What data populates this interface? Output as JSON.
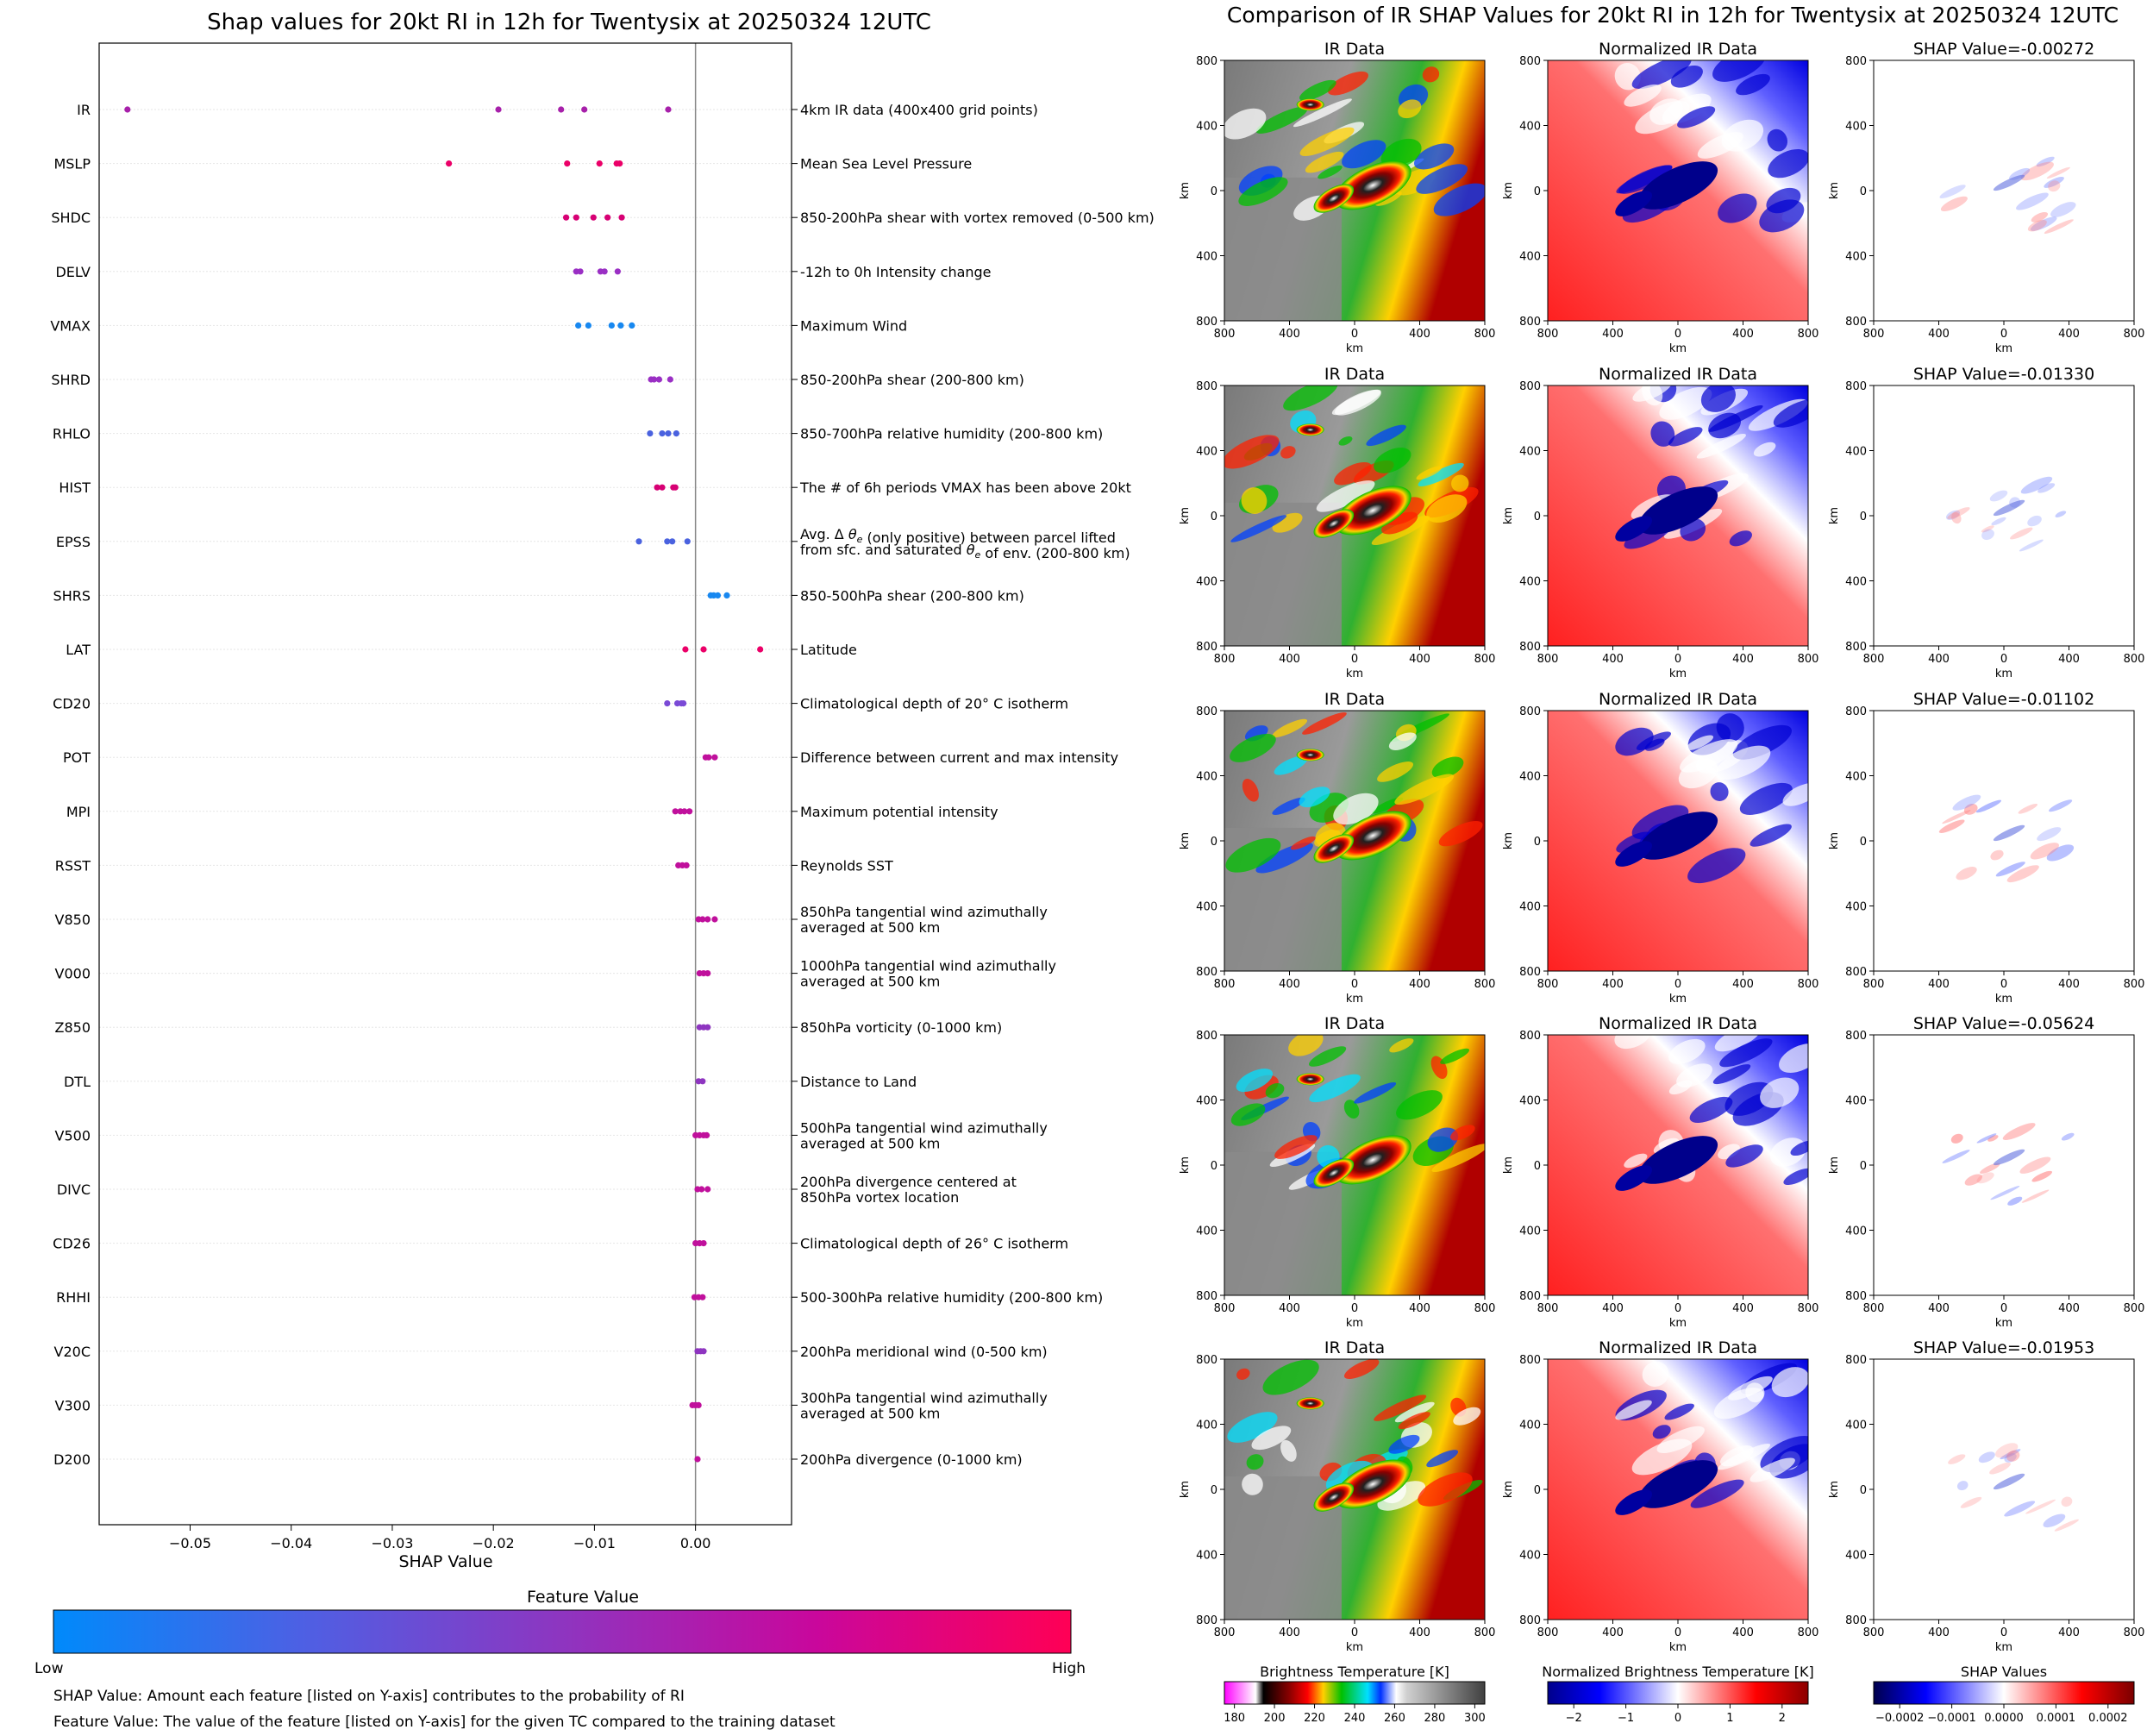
{
  "left": {
    "title": "Shap values for 20kt RI in 12h for Twentysix at 20250324 12UTC",
    "xlabel": "SHAP Value",
    "colorbar": {
      "title": "Feature Value",
      "low": "Low",
      "high": "High",
      "colors": [
        "#008afb",
        "#4f5fe3",
        "#8e35c0",
        "#c9079c",
        "#ff0055"
      ]
    },
    "notes": [
      "SHAP Value: Amount each feature [listed on Y-axis] contributes to the probability of RI",
      "Feature Value: The value of the feature [listed on Y-axis] for the given TC compared to the training dataset"
    ]
  },
  "right": {
    "title": "Comparison of IR SHAP Values for 20kt RI in 12h for Twentysix at 20250324 12UTC",
    "col_titles": [
      "IR Data",
      "Normalized IR Data"
    ],
    "shap_titles": [
      "SHAP Value=-0.00272",
      "SHAP Value=-0.01330",
      "SHAP Value=-0.01102",
      "SHAP Value=-0.05624",
      "SHAP Value=-0.01953"
    ],
    "axis_label": "km",
    "tick_labels": [
      "800",
      "400",
      "0",
      "400",
      "800"
    ],
    "colorbars": [
      {
        "title": "Brightness Temperature [K]",
        "ticks": [
          "180",
          "200",
          "220",
          "240",
          "260",
          "280",
          "300"
        ]
      },
      {
        "title": "Normalized Brightness Temperature [K]",
        "ticks": [
          "−2",
          "−1",
          "0",
          "1",
          "2"
        ]
      },
      {
        "title": "SHAP Values",
        "ticks": [
          "−0.0002",
          "−0.0001",
          "0.0000",
          "0.0001",
          "0.0002"
        ]
      }
    ]
  },
  "chart_data": [
    {
      "type": "scatter",
      "title": "Shap values for 20kt RI in 12h for Twentysix at 20250324 12UTC",
      "xlabel": "SHAP Value",
      "xlim": [
        -0.059,
        0.0095
      ],
      "x_ticks": [
        -0.05,
        -0.04,
        -0.03,
        -0.02,
        -0.01,
        0.0
      ],
      "x_tick_labels": [
        "−0.05",
        "−0.04",
        "−0.03",
        "−0.02",
        "−0.01",
        "0.00"
      ],
      "features": [
        {
          "name": "IR",
          "desc": "4km IR data (400x400 grid points)",
          "color": "#a720aa",
          "x": [
            -0.0562,
            -0.0195,
            -0.0133,
            -0.011,
            -0.0027
          ]
        },
        {
          "name": "MSLP",
          "desc": "Mean Sea Level Pressure",
          "color": "#eb0068",
          "x": [
            -0.0244,
            -0.0127,
            -0.0095,
            -0.0078,
            -0.0075
          ]
        },
        {
          "name": "SHDC",
          "desc": "850-200hPa shear with vortex removed (0-500 km)",
          "color": "#d70074",
          "x": [
            -0.0128,
            -0.0118,
            -0.0101,
            -0.0087,
            -0.0073
          ]
        },
        {
          "name": "DELV",
          "desc": "-12h to 0h Intensity change",
          "color": "#9a2fc4",
          "x": [
            -0.0118,
            -0.0114,
            -0.0094,
            -0.009,
            -0.0077
          ]
        },
        {
          "name": "VMAX",
          "desc": "Maximum Wind",
          "color": "#1888f0",
          "x": [
            -0.0116,
            -0.0106,
            -0.0083,
            -0.0074,
            -0.0063
          ]
        },
        {
          "name": "SHRD",
          "desc": "850-200hPa shear (200-800 km)",
          "color": "#9a2fc4",
          "x": [
            -0.0044,
            -0.0041,
            -0.0036,
            -0.0025
          ]
        },
        {
          "name": "RHLO",
          "desc": "850-700hPa relative humidity (200-800 km)",
          "color": "#4a62df",
          "x": [
            -0.0045,
            -0.0033,
            -0.0027,
            -0.0019
          ]
        },
        {
          "name": "HIST",
          "desc": "The # of 6h periods VMAX has been above 20kt",
          "color": "#d70074",
          "x": [
            -0.0038,
            -0.0033,
            -0.0022,
            -0.002
          ]
        },
        {
          "name": "EPSS",
          "desc": "Avg. Δ θe (only positive) between parcel lifted\nfrom sfc. and saturated θe of env. (200-800 km)",
          "color": "#4a62df",
          "x": [
            -0.0056,
            -0.0028,
            -0.0023,
            -0.0008
          ]
        },
        {
          "name": "SHRS",
          "desc": "850-500hPa shear (200-800 km)",
          "color": "#1888f0",
          "x": [
            0.0015,
            0.0018,
            0.0022,
            0.0031
          ]
        },
        {
          "name": "LAT",
          "desc": "Latitude",
          "color": "#eb0068",
          "x": [
            -0.001,
            0.0008,
            0.0064
          ]
        },
        {
          "name": "CD20",
          "desc": "Climatological depth of 20° C isotherm",
          "color": "#7a4ad6",
          "x": [
            -0.0028,
            -0.0018,
            -0.0014,
            -0.0012
          ]
        },
        {
          "name": "POT",
          "desc": "Difference between current and max intensity",
          "color": "#c0109c",
          "x": [
            0.001,
            0.0013,
            0.0019
          ]
        },
        {
          "name": "MPI",
          "desc": "Maximum potential intensity",
          "color": "#c0109c",
          "x": [
            -0.002,
            -0.0015,
            -0.0011,
            -0.0006
          ]
        },
        {
          "name": "RSST",
          "desc": "Reynolds SST",
          "color": "#c0109c",
          "x": [
            -0.0017,
            -0.0013,
            -0.0009
          ]
        },
        {
          "name": "V850",
          "desc": "850hPa tangential wind azimuthally\naveraged at 500 km",
          "color": "#c0109c",
          "x": [
            0.0003,
            0.0007,
            0.0012,
            0.0019
          ]
        },
        {
          "name": "V000",
          "desc": "1000hPa tangential wind azimuthally\naveraged at 500 km",
          "color": "#c0109c",
          "x": [
            0.0004,
            0.0008,
            0.0012
          ]
        },
        {
          "name": "Z850",
          "desc": "850hPa vorticity (0-1000 km)",
          "color": "#8e35c0",
          "x": [
            0.0004,
            0.0008,
            0.0012
          ]
        },
        {
          "name": "DTL",
          "desc": "Distance to Land",
          "color": "#8e35c0",
          "x": [
            0.0003,
            0.0007
          ]
        },
        {
          "name": "V500",
          "desc": "500hPa tangential wind azimuthally\naveraged at 500 km",
          "color": "#c0109c",
          "x": [
            0.0,
            0.0004,
            0.0008,
            0.0011
          ]
        },
        {
          "name": "DIVC",
          "desc": "200hPa divergence centered at\n850hPa vortex location",
          "color": "#c0109c",
          "x": [
            0.0002,
            0.0006,
            0.0012
          ]
        },
        {
          "name": "CD26",
          "desc": "Climatological depth of 26° C isotherm",
          "color": "#c0109c",
          "x": [
            0.0,
            0.0004,
            0.0008
          ]
        },
        {
          "name": "RHHI",
          "desc": "500-300hPa relative humidity (200-800 km)",
          "color": "#c0109c",
          "x": [
            -0.0001,
            0.0003,
            0.0007
          ]
        },
        {
          "name": "V20C",
          "desc": "200hPa meridional wind (0-500 km)",
          "color": "#8e35c0",
          "x": [
            0.0002,
            0.0005,
            0.0008
          ]
        },
        {
          "name": "V300",
          "desc": "300hPa tangential wind azimuthally\naveraged at 500 km",
          "color": "#c0109c",
          "x": [
            -0.0003,
            0.0,
            0.0003
          ]
        },
        {
          "name": "D200",
          "desc": "200hPa divergence (0-1000 km)",
          "color": "#c0109c",
          "x": [
            0.0002
          ]
        }
      ]
    },
    {
      "type": "heatmap",
      "title": "Comparison of IR SHAP Values for 20kt RI in 12h for Twentysix at 20250324 12UTC",
      "rows": 5,
      "columns": [
        "IR Data",
        "Normalized IR Data",
        "SHAP"
      ],
      "xlabel": "km",
      "ylabel": "km",
      "tick_labels": [
        "800",
        "400",
        "0",
        "400",
        "800"
      ],
      "shap_values": [
        -0.00272,
        -0.0133,
        -0.01102,
        -0.05624,
        -0.01953
      ],
      "colorbar_ranges": {
        "brightness_K": [
          180,
          310
        ],
        "normalized": [
          -2.5,
          2.5
        ],
        "shap": [
          -0.00025,
          0.00025
        ]
      }
    }
  ]
}
